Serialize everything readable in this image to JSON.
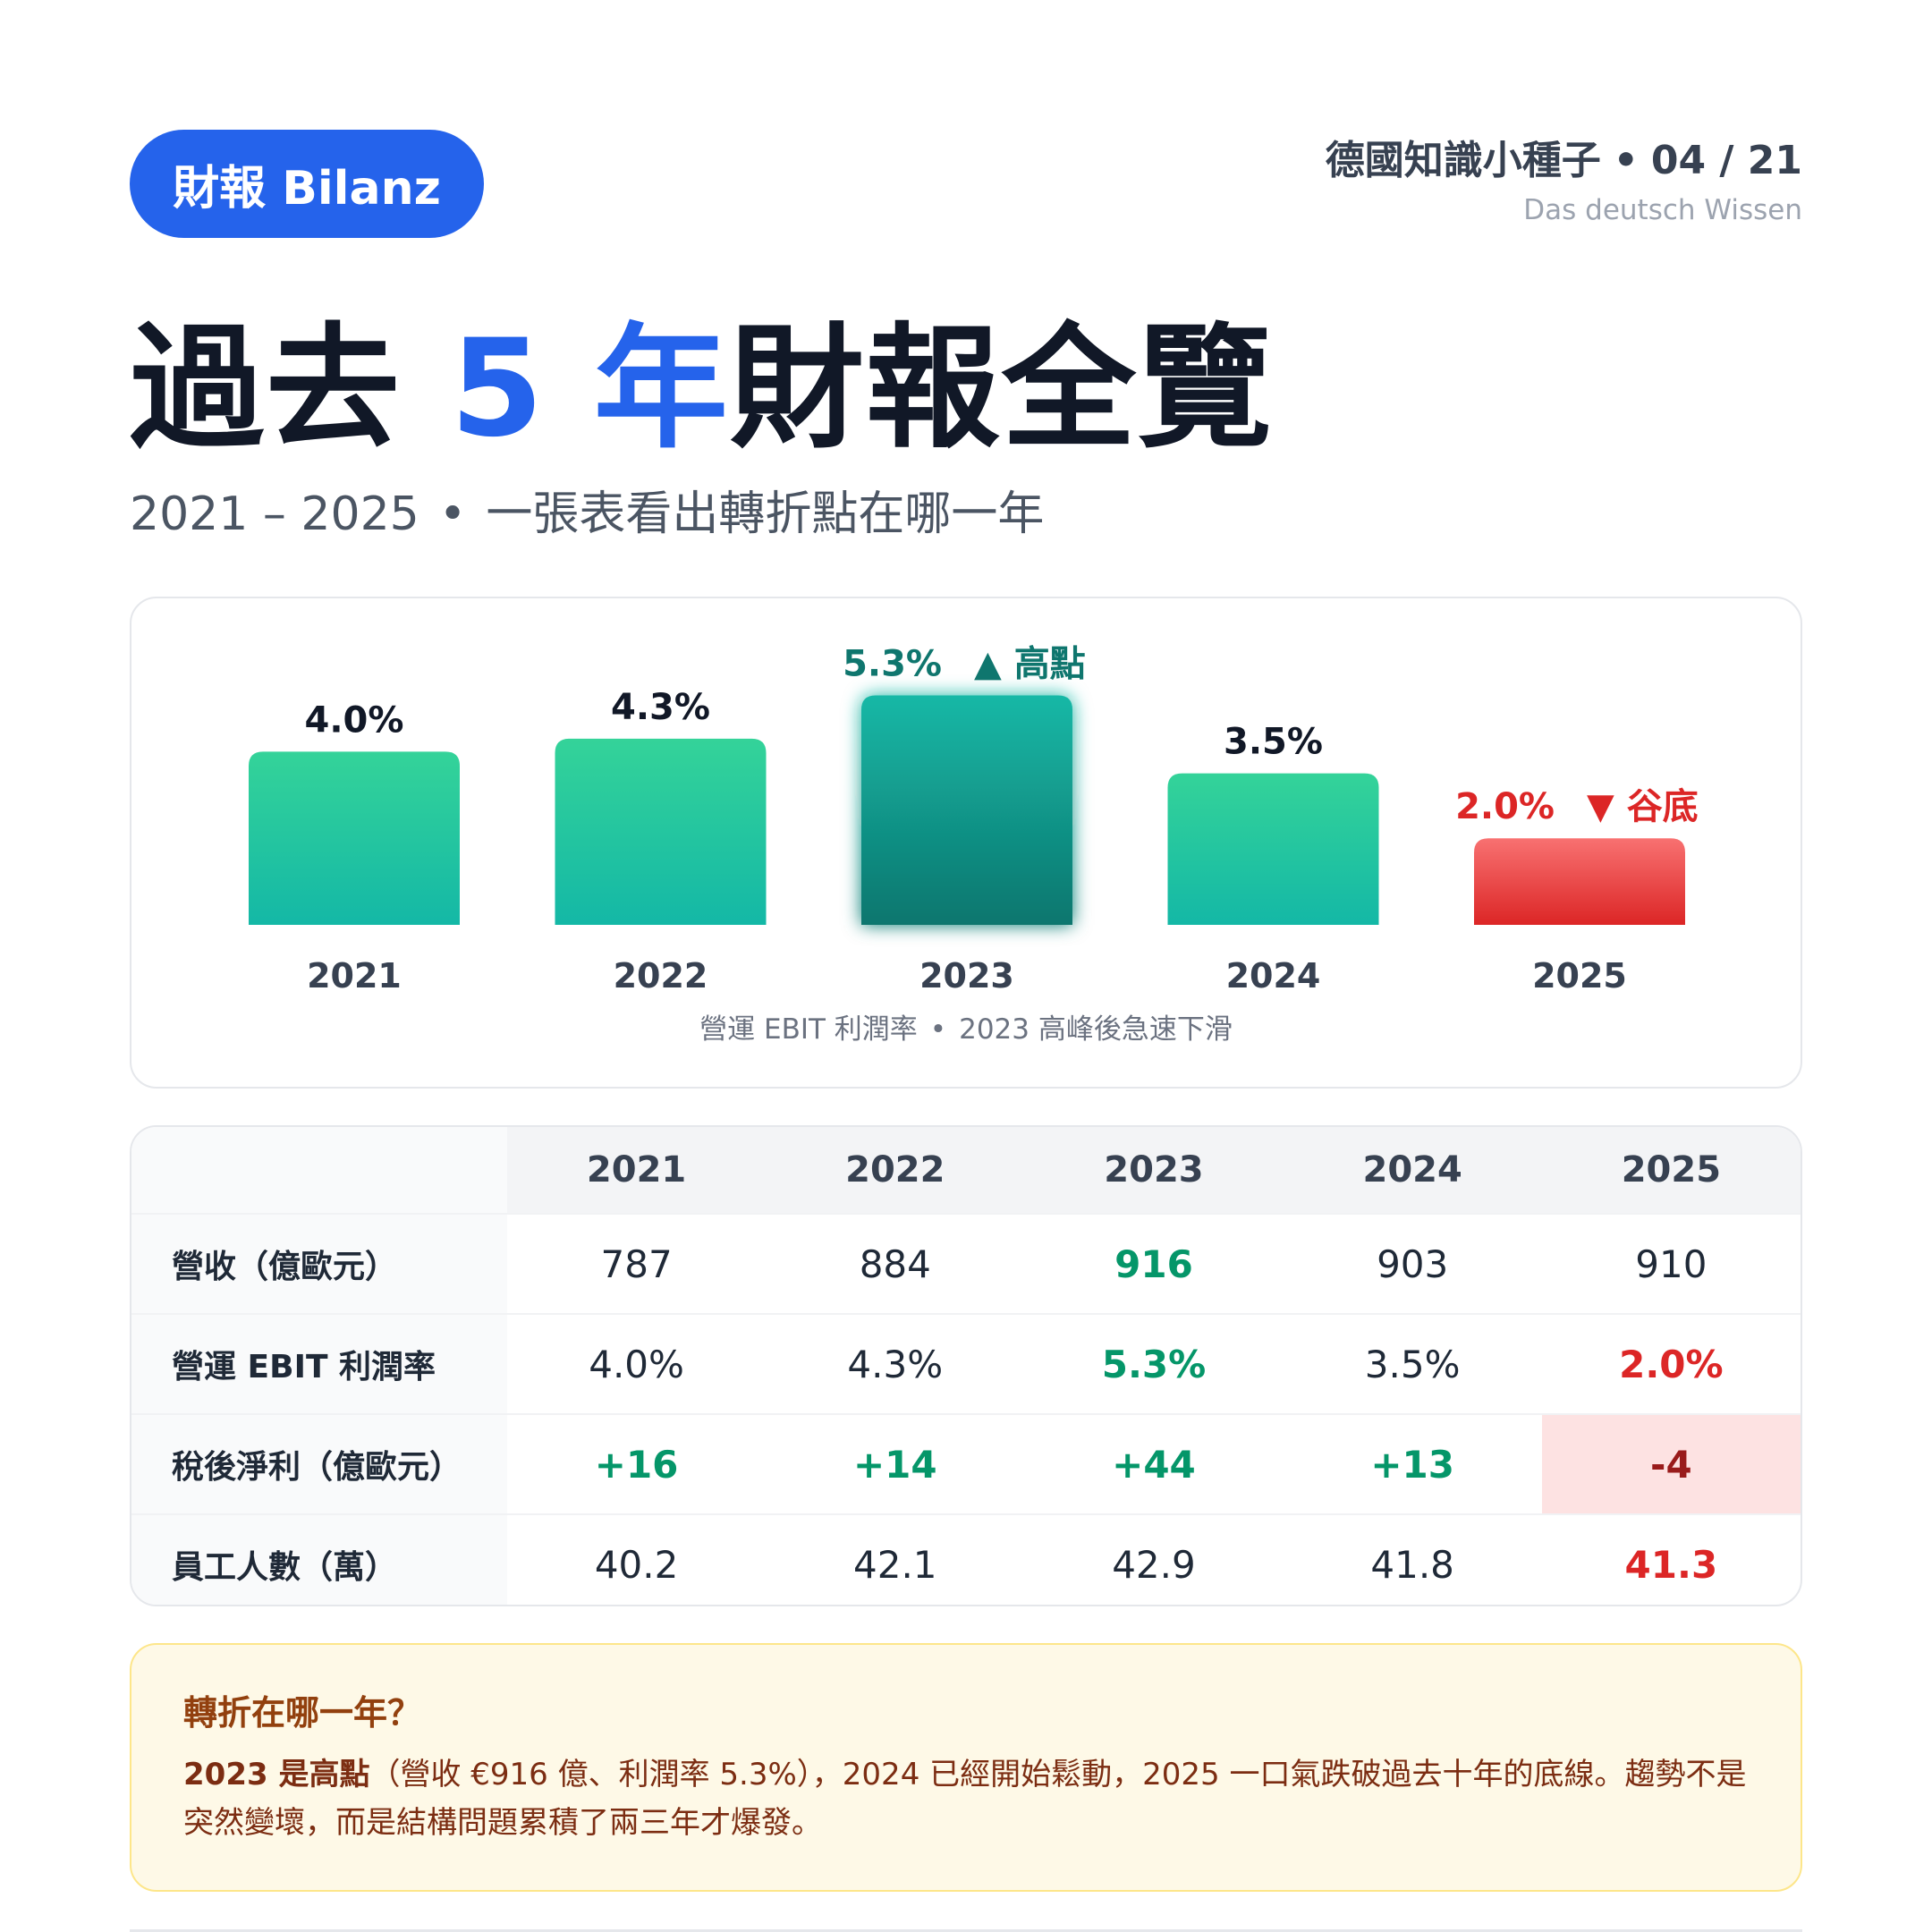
{
  "header": {
    "pill_label": "財報 Bilanz",
    "brand_name": "德國知識小種子",
    "brand_separator": "•",
    "page_indicator": "04 / 21",
    "brand_subtitle": "Das deutsch Wissen"
  },
  "title": {
    "part1": "過去 ",
    "highlight": "5 年",
    "part2": "財報全覽"
  },
  "subtitle": {
    "range": "2021 – 2025",
    "separator": "•",
    "text": "一張表看出轉折點在哪一年"
  },
  "chart_data": {
    "type": "bar",
    "categories": [
      "2021",
      "2022",
      "2023",
      "2024",
      "2025"
    ],
    "values": [
      4.0,
      4.3,
      5.3,
      3.5,
      2.0
    ],
    "value_labels": [
      "4.0%",
      "4.3%",
      "5.3%",
      "3.5%",
      "2.0%"
    ],
    "annotations": [
      {
        "category": "2023",
        "text": "▲ 高點",
        "kind": "peak"
      },
      {
        "category": "2025",
        "text": "▼ 谷底",
        "kind": "trough"
      }
    ],
    "caption_left": "營運 EBIT 利潤率",
    "caption_sep": "•",
    "caption_right": "2023 高峰後急速下滑",
    "colors": {
      "normal_top": "#34d399",
      "normal_bottom": "#14b8a6",
      "peak_top": "#14b8a6",
      "peak_bottom": "#0f766e",
      "trough_top": "#f87171",
      "trough_bottom": "#dc2626",
      "peak_text": "#0f766e",
      "trough_text": "#dc2626",
      "label_text": "#111827"
    }
  },
  "table": {
    "columns": [
      "2021",
      "2022",
      "2023",
      "2024",
      "2025"
    ],
    "rows": [
      {
        "label": "營收（億歐元）",
        "cells": [
          "787",
          "884",
          "916",
          "903",
          "910"
        ]
      },
      {
        "label": "營運 EBIT 利潤率",
        "cells": [
          "4.0%",
          "4.3%",
          "5.3%",
          "3.5%",
          "2.0%"
        ]
      },
      {
        "label": "稅後淨利（億歐元）",
        "cells": [
          "+16",
          "+14",
          "+44",
          "+13",
          "-4"
        ]
      },
      {
        "label": "員工人數（萬）",
        "cells": [
          "40.2",
          "42.1",
          "42.9",
          "41.8",
          "41.3"
        ]
      }
    ]
  },
  "insight": {
    "title": "轉折在哪一年？",
    "lead": "2023 是高點",
    "body": "（營收 €916 億、利潤率 5.3%），2024 已經開始鬆動，2025 一口氣跌破過去十年的底線。趨勢不是突然變壞，而是結構問題累積了兩三年才爆發。"
  }
}
